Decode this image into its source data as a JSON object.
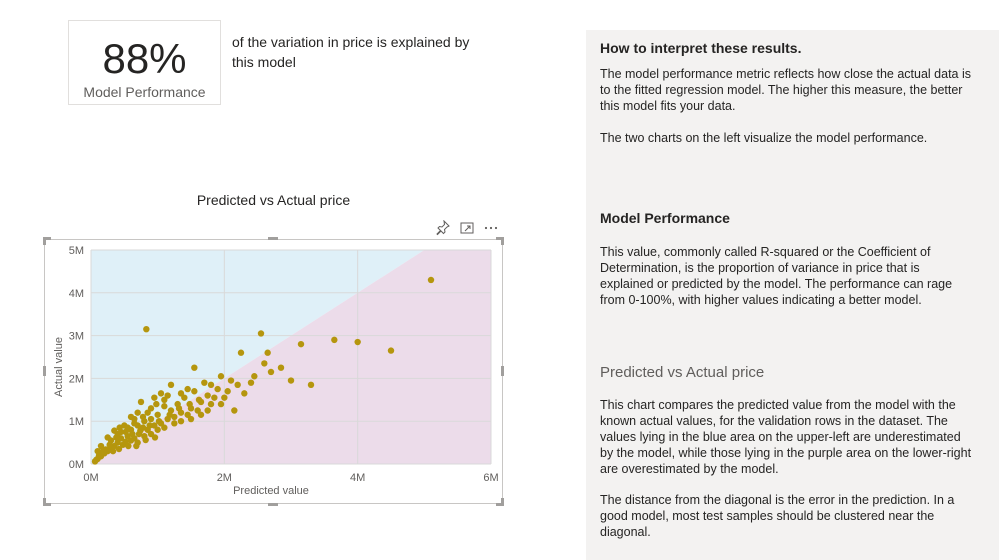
{
  "kpi": {
    "value": "88%",
    "label": "Model Performance",
    "description": "of the variation in price is explained by this model"
  },
  "visual": {
    "title": "Predicted vs Actual price",
    "header_icons": [
      "pin-icon",
      "focus-mode-icon",
      "more-options-icon"
    ]
  },
  "chart_data": {
    "type": "scatter",
    "title": "Predicted vs Actual price",
    "xlabel": "Predicted value",
    "ylabel": "Actual value",
    "xlim": [
      0,
      6000000
    ],
    "ylim": [
      0,
      5000000
    ],
    "x_ticks": [
      "0M",
      "2M",
      "4M",
      "6M"
    ],
    "y_ticks": [
      "0M",
      "1M",
      "2M",
      "3M",
      "4M",
      "5M"
    ],
    "grid": true,
    "regions": {
      "upper_left_color": "#dff0f8",
      "lower_right_color": "#ecdcea"
    },
    "point_color": "#b5960e",
    "points": [
      [
        5100000,
        4300000
      ],
      [
        4500000,
        2650000
      ],
      [
        4000000,
        2850000
      ],
      [
        3650000,
        2900000
      ],
      [
        3150000,
        2800000
      ],
      [
        3300000,
        1850000
      ],
      [
        3000000,
        1950000
      ],
      [
        2850000,
        2250000
      ],
      [
        2650000,
        2600000
      ],
      [
        2550000,
        3050000
      ],
      [
        2250000,
        2600000
      ],
      [
        2450000,
        2050000
      ],
      [
        2200000,
        1850000
      ],
      [
        2150000,
        1250000
      ],
      [
        1550000,
        2250000
      ],
      [
        830000,
        3150000
      ],
      [
        1700000,
        1900000
      ],
      [
        1900000,
        1750000
      ],
      [
        1800000,
        1400000
      ],
      [
        1500000,
        1300000
      ],
      [
        2600000,
        2350000
      ],
      [
        2700000,
        2150000
      ],
      [
        2400000,
        1900000
      ],
      [
        2300000,
        1650000
      ],
      [
        2050000,
        1700000
      ],
      [
        1750000,
        1600000
      ],
      [
        1650000,
        1450000
      ],
      [
        1400000,
        1550000
      ],
      [
        1300000,
        1400000
      ],
      [
        1200000,
        1250000
      ],
      [
        1100000,
        1350000
      ],
      [
        1000000,
        1150000
      ],
      [
        900000,
        1050000
      ],
      [
        800000,
        1000000
      ],
      [
        700000,
        900000
      ],
      [
        600000,
        800000
      ],
      [
        550000,
        650000
      ],
      [
        450000,
        600000
      ],
      [
        400000,
        500000
      ],
      [
        350000,
        420000
      ],
      [
        300000,
        380000
      ],
      [
        250000,
        300000
      ],
      [
        200000,
        250000
      ],
      [
        150000,
        180000
      ],
      [
        100000,
        120000
      ],
      [
        80000,
        100000
      ],
      [
        60000,
        60000
      ],
      [
        120000,
        200000
      ],
      [
        220000,
        340000
      ],
      [
        330000,
        300000
      ],
      [
        480000,
        450000
      ],
      [
        520000,
        750000
      ],
      [
        650000,
        600000
      ],
      [
        720000,
        700000
      ],
      [
        780000,
        850000
      ],
      [
        850000,
        800000
      ],
      [
        950000,
        900000
      ],
      [
        1050000,
        950000
      ],
      [
        1150000,
        1050000
      ],
      [
        1250000,
        1100000
      ],
      [
        1350000,
        1200000
      ],
      [
        1450000,
        1150000
      ],
      [
        1600000,
        1250000
      ],
      [
        1850000,
        1550000
      ],
      [
        1950000,
        1400000
      ],
      [
        2000000,
        1550000
      ],
      [
        700000,
        1200000
      ],
      [
        750000,
        1450000
      ],
      [
        900000,
        1300000
      ],
      [
        950000,
        1550000
      ],
      [
        1050000,
        1650000
      ],
      [
        1100000,
        1500000
      ],
      [
        1200000,
        1850000
      ],
      [
        650000,
        1050000
      ],
      [
        500000,
        900000
      ],
      [
        400000,
        700000
      ],
      [
        300000,
        550000
      ],
      [
        600000,
        550000
      ],
      [
        700000,
        500000
      ],
      [
        800000,
        650000
      ],
      [
        900000,
        700000
      ],
      [
        1000000,
        800000
      ],
      [
        1100000,
        850000
      ],
      [
        1250000,
        950000
      ],
      [
        1350000,
        1000000
      ],
      [
        1500000,
        1050000
      ],
      [
        1650000,
        1150000
      ],
      [
        1750000,
        1250000
      ],
      [
        850000,
        1200000
      ],
      [
        650000,
        950000
      ],
      [
        550000,
        850000
      ],
      [
        450000,
        750000
      ],
      [
        380000,
        620000
      ],
      [
        280000,
        450000
      ],
      [
        180000,
        300000
      ],
      [
        520000,
        520000
      ],
      [
        620000,
        700000
      ],
      [
        740000,
        780000
      ],
      [
        880000,
        900000
      ],
      [
        1020000,
        1000000
      ],
      [
        1180000,
        1150000
      ],
      [
        1320000,
        1300000
      ],
      [
        1480000,
        1400000
      ],
      [
        1620000,
        1500000
      ],
      [
        2100000,
        1950000
      ],
      [
        1950000,
        2050000
      ],
      [
        1800000,
        1850000
      ],
      [
        1550000,
        1700000
      ],
      [
        1450000,
        1750000
      ],
      [
        1350000,
        1650000
      ],
      [
        1150000,
        1600000
      ],
      [
        980000,
        1400000
      ],
      [
        780000,
        1100000
      ],
      [
        600000,
        1100000
      ],
      [
        430000,
        850000
      ],
      [
        350000,
        780000
      ],
      [
        250000,
        620000
      ],
      [
        150000,
        420000
      ],
      [
        100000,
        300000
      ],
      [
        420000,
        350000
      ],
      [
        560000,
        420000
      ],
      [
        680000,
        420000
      ],
      [
        820000,
        560000
      ],
      [
        960000,
        620000
      ]
    ]
  },
  "panel": {
    "heading": "How to interpret these results.",
    "intro": "The model performance metric reflects how close the actual data is to the fitted regression model.  The higher this measure, the better this model fits your data.",
    "intro2": "The two charts on the left visualize the model performance.",
    "perf_heading": "Model Performance",
    "perf_body": "This value, commonly called R-squared or the Coefficient of Determination, is the proportion of variance in price that is explained or predicted by  the model. The performance can rage from 0-100%, with higher values indicating a better model.",
    "pva_heading": "Predicted vs Actual price",
    "pva_body": "This chart compares the predicted value from the model with the known actual values, for the validation rows in the dataset.  The values lying in the blue area on the upper-left are underestimated by the model, while those lying in the purple area on the lower-right are overestimated by the model.",
    "pva_body2": "The distance from the diagonal is the error in the prediction. In a good model, most test samples should be clustered near the diagonal."
  }
}
